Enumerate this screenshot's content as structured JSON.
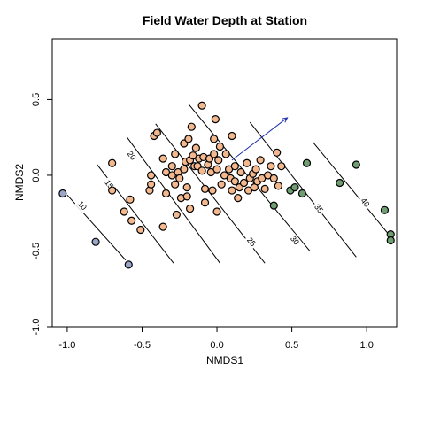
{
  "chart_data": {
    "type": "scatter",
    "title": "Field Water Depth at Station",
    "xlabel": "NMDS1",
    "ylabel": "NMDS2",
    "xlim": [
      -1.1,
      1.2
    ],
    "ylim": [
      -1.0,
      0.9
    ],
    "xticks": [
      -1.0,
      -0.5,
      0.0,
      0.5,
      1.0
    ],
    "yticks": [
      -1.0,
      -0.5,
      0.0,
      0.5
    ],
    "xtick_labels": [
      "-1.0",
      "-0.5",
      "0.0",
      "0.5",
      "1.0"
    ],
    "ytick_labels": [
      "-1.0",
      "-0.5",
      "0.0",
      "0.5"
    ],
    "grid": false,
    "colors": {
      "orange": "#F4B88E",
      "blue": "#9AA6C8",
      "green": "#6F9E72",
      "arrow": "#1F2FB0"
    },
    "vector": {
      "from": [
        0.1,
        0.1
      ],
      "to": [
        0.47,
        0.38
      ]
    },
    "contours": [
      {
        "level": "10",
        "label": "10",
        "from": [
          -1.0,
          -0.13
        ],
        "to": [
          -0.61,
          -0.56
        ],
        "label_at": [
          -0.9,
          -0.2
        ]
      },
      {
        "level": "15",
        "label": "15",
        "from": [
          -0.8,
          0.07
        ],
        "to": [
          -0.29,
          -0.58
        ],
        "label_at": [
          -0.72,
          -0.06
        ]
      },
      {
        "level": "20",
        "label": "20",
        "from": [
          -0.6,
          0.25
        ],
        "to": [
          0.02,
          -0.58
        ],
        "label_at": [
          -0.57,
          0.13
        ]
      },
      {
        "level": "25",
        "label": "25",
        "from": [
          -0.41,
          0.34
        ],
        "to": [
          0.32,
          -0.58
        ],
        "label_at": [
          0.23,
          -0.44
        ]
      },
      {
        "level": "30",
        "label": "30",
        "from": [
          -0.19,
          0.47
        ],
        "to": [
          0.62,
          -0.5
        ],
        "label_at": [
          0.52,
          -0.43
        ]
      },
      {
        "level": "35",
        "label": "35",
        "from": [
          0.22,
          0.35
        ],
        "to": [
          0.93,
          -0.54
        ],
        "label_at": [
          0.68,
          -0.22
        ]
      },
      {
        "level": "40",
        "label": "40",
        "from": [
          0.64,
          0.22
        ],
        "to": [
          1.18,
          -0.43
        ],
        "label_at": [
          0.99,
          -0.18
        ]
      }
    ],
    "series": [
      {
        "color_key": "orange",
        "points": [
          [
            -0.7,
            0.08
          ],
          [
            -0.7,
            -0.1
          ],
          [
            -0.62,
            -0.24
          ],
          [
            -0.58,
            -0.16
          ],
          [
            -0.57,
            -0.3
          ],
          [
            -0.51,
            -0.36
          ],
          [
            -0.45,
            -0.1
          ],
          [
            -0.44,
            0.0
          ],
          [
            -0.44,
            -0.06
          ],
          [
            -0.42,
            0.26
          ],
          [
            -0.4,
            0.28
          ],
          [
            -0.36,
            0.11
          ],
          [
            -0.36,
            -0.34
          ],
          [
            -0.34,
            0.02
          ],
          [
            -0.34,
            -0.12
          ],
          [
            -0.3,
            0.0
          ],
          [
            -0.3,
            0.06
          ],
          [
            -0.28,
            0.14
          ],
          [
            -0.28,
            -0.06
          ],
          [
            -0.27,
            -0.26
          ],
          [
            -0.26,
            0.02
          ],
          [
            -0.25,
            -0.02
          ],
          [
            -0.24,
            -0.15
          ],
          [
            -0.22,
            0.21
          ],
          [
            -0.22,
            0.04
          ],
          [
            -0.21,
            0.09
          ],
          [
            -0.2,
            -0.08
          ],
          [
            -0.2,
            -0.14
          ],
          [
            -0.19,
            0.24
          ],
          [
            -0.18,
            0.1
          ],
          [
            -0.18,
            -0.22
          ],
          [
            -0.17,
            0.32
          ],
          [
            -0.16,
            0.13
          ],
          [
            -0.15,
            0.06
          ],
          [
            -0.14,
            0.18
          ],
          [
            -0.13,
            0.06
          ],
          [
            -0.12,
            0.11
          ],
          [
            -0.1,
            0.46
          ],
          [
            -0.1,
            0.03
          ],
          [
            -0.09,
            0.12
          ],
          [
            -0.08,
            -0.09
          ],
          [
            -0.08,
            -0.18
          ],
          [
            -0.06,
            0.07
          ],
          [
            -0.05,
            0.11
          ],
          [
            -0.04,
            0.02
          ],
          [
            -0.03,
            -0.1
          ],
          [
            -0.02,
            0.24
          ],
          [
            -0.02,
            0.14
          ],
          [
            -0.01,
            0.37
          ],
          [
            0.0,
            -0.24
          ],
          [
            0.0,
            0.04
          ],
          [
            0.01,
            0.1
          ],
          [
            0.02,
            0.19
          ],
          [
            0.03,
            -0.06
          ],
          [
            0.05,
            0.0
          ],
          [
            0.06,
            0.14
          ],
          [
            0.08,
            0.04
          ],
          [
            0.09,
            -0.02
          ],
          [
            0.1,
            -0.1
          ],
          [
            0.1,
            0.26
          ],
          [
            0.12,
            0.06
          ],
          [
            0.12,
            -0.04
          ],
          [
            0.14,
            -0.15
          ],
          [
            0.15,
            -0.08
          ],
          [
            0.16,
            0.02
          ],
          [
            0.18,
            -0.05
          ],
          [
            0.2,
            0.08
          ],
          [
            0.21,
            -0.1
          ],
          [
            0.22,
            -0.02
          ],
          [
            0.24,
            0.01
          ],
          [
            0.25,
            -0.08
          ],
          [
            0.26,
            0.04
          ],
          [
            0.27,
            -0.04
          ],
          [
            0.29,
            0.1
          ],
          [
            0.3,
            -0.02
          ],
          [
            0.32,
            -0.09
          ],
          [
            0.34,
            0.0
          ],
          [
            0.36,
            0.06
          ],
          [
            0.38,
            -0.02
          ],
          [
            0.4,
            0.15
          ],
          [
            0.41,
            -0.07
          ],
          [
            0.43,
            0.06
          ]
        ]
      },
      {
        "color_key": "blue",
        "points": [
          [
            -1.03,
            -0.12
          ],
          [
            -0.81,
            -0.44
          ],
          [
            -0.59,
            -0.59
          ]
        ]
      },
      {
        "color_key": "green",
        "points": [
          [
            0.38,
            -0.2
          ],
          [
            0.49,
            -0.1
          ],
          [
            0.52,
            -0.08
          ],
          [
            0.57,
            -0.12
          ],
          [
            0.6,
            0.08
          ],
          [
            0.82,
            -0.05
          ],
          [
            0.93,
            0.07
          ],
          [
            1.12,
            -0.23
          ],
          [
            1.16,
            -0.39
          ],
          [
            1.16,
            -0.43
          ]
        ]
      }
    ]
  }
}
